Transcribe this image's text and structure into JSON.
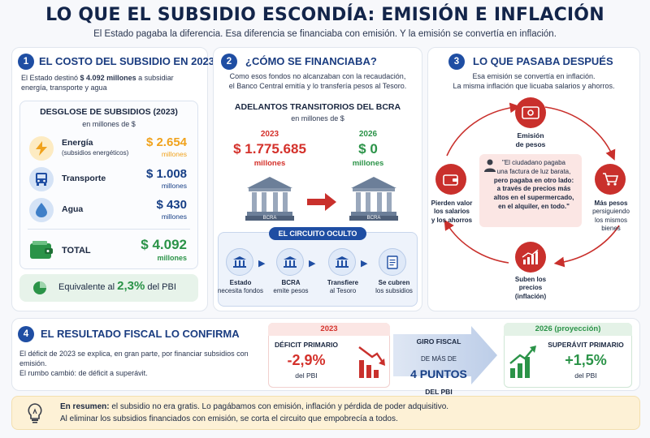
{
  "header": {
    "title": "LO QUE EL SUBSIDIO ESCONDÍA: EMISIÓN E INFLACIÓN",
    "subtitle": "El Estado pagaba la diferencia. Esa diferencia se financiaba con emisión. Y la emisión se convertía en inflación."
  },
  "s1": {
    "num": "1",
    "title": "EL COSTO DEL SUBSIDIO EN 2023",
    "intro_pre": "El Estado destinó ",
    "intro_bold": "$ 4.092 millones",
    "intro_post": " a subsidiar",
    "intro_line2": "energía, transporte y agua",
    "box_title": "DESGLOSE DE SUBSIDIOS (2023)",
    "box_sub": "en millones de $",
    "items": [
      {
        "label": "Energía",
        "sub": "(subsidios energéticos)",
        "value": "$ 2.654",
        "unit": "millones",
        "icon": "lightning-icon"
      },
      {
        "label": "Transporte",
        "sub": "",
        "value": "$ 1.008",
        "unit": "millones",
        "icon": "bus-icon"
      },
      {
        "label": "Agua",
        "sub": "",
        "value": "$ 430",
        "unit": "millones",
        "icon": "water-drop-icon"
      }
    ],
    "total_label": "TOTAL",
    "total_value": "$ 4.092",
    "total_unit": "millones",
    "eq_pre": "Equivalente al ",
    "eq_val": "2,3%",
    "eq_post": " del PBI"
  },
  "s2": {
    "num": "2",
    "title": "¿CÓMO SE FINANCIABA?",
    "intro1": "Como esos fondos no alcanzaban con la recaudación,",
    "intro2": "el Banco Central emitía y lo transfería pesos al Tesoro.",
    "box_title": "ADELANTOS TRANSITORIOS DEL BCRA",
    "box_sub": "en millones de $",
    "y1": "2023",
    "v1": "$ 1.775.685",
    "u1": "millones",
    "y2": "2026",
    "v2": "$ 0",
    "u2": "millones",
    "bank_label": "BCRA",
    "circuit_title": "EL CIRCUITO OCULTO",
    "steps": [
      {
        "l1": "Estado",
        "l2": "necesita fondos"
      },
      {
        "l1": "BCRA",
        "l2": "emite pesos"
      },
      {
        "l1": "Transfiere",
        "l2": "al Tesoro"
      },
      {
        "l1": "Se cubren",
        "l2": "los subsidios"
      }
    ]
  },
  "s3": {
    "num": "3",
    "title": "LO QUE PASABA DESPUÉS",
    "intro1": "Esa emisión se convertía en inflación.",
    "intro2": "La misma inflación que licuaba salarios y ahorros.",
    "top_l1": "Emisión",
    "top_l2": "de pesos",
    "right_l1": "Más pesos",
    "right_l2": "persiguiendo",
    "right_l3": "los mismos",
    "right_l4": "bienes",
    "bottom_l1": "Suben los",
    "bottom_l2": "precios",
    "bottom_l3": "(inflación)",
    "left_l1": "Pierden valor",
    "left_l2": "los salarios",
    "left_l3": "y los ahorros",
    "quote_l1": "\"El ciudadano pagaba",
    "quote_l2": "una factura de luz barata,",
    "quote_l3": "pero pagaba en otro lado:",
    "quote_l4": "a través de precios más",
    "quote_l5": "altos en el supermercado,",
    "quote_l6": "en el alquiler, en todo.\""
  },
  "s4": {
    "num": "4",
    "title": "EL RESULTADO FISCAL LO CONFIRMA",
    "desc1": "El déficit de 2023 se explica, en gran parte, por financiar subsidios con emisión.",
    "desc2": "El rumbo cambió: de déficit a superávit.",
    "y1": "2023",
    "l1": "DÉFICIT PRIMARIO",
    "v1": "-2,9%",
    "p1": "del PBI",
    "giro1": "GIRO FISCAL",
    "giro2": "DE MÁS DE",
    "giro3": "4 PUNTOS",
    "giro4": "DEL PBI",
    "y2": "2026 (proyección)",
    "l2": "SUPERÁVIT PRIMARIO",
    "v2": "+1,5%",
    "p2": "del PBI"
  },
  "summary": {
    "lead": "En resumen:",
    "line1": " el subsidio no era gratis. Lo pagábamos con emisión, inflación y pérdida de poder adquisitivo.",
    "line2": "Al eliminar los subsidios financiados con emisión, se corta el circuito que empobrecía a todos."
  },
  "colors": {
    "navy": "#1f4ea3",
    "red": "#d4312b",
    "green": "#2b9348",
    "orange": "#f0a21c"
  }
}
